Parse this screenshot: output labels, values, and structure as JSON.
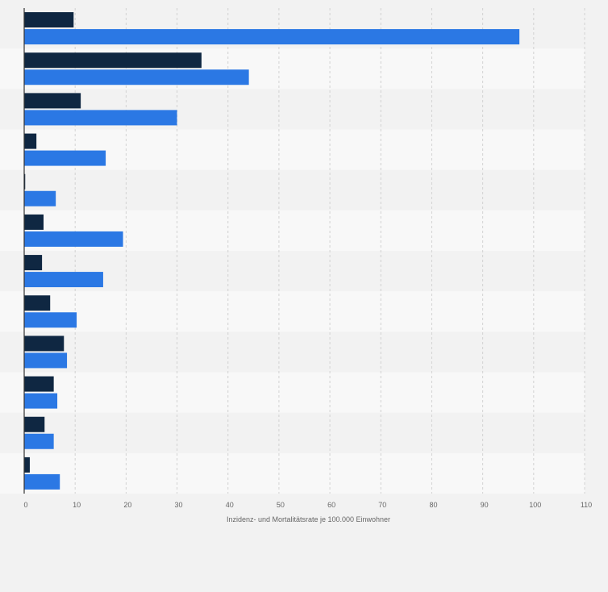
{
  "chart_data": {
    "type": "bar",
    "orientation": "horizontal",
    "categories": [
      "",
      "",
      "",
      "",
      "",
      "",
      "",
      "",
      "",
      "",
      "",
      ""
    ],
    "series": [
      {
        "values": [
          9.7,
          34.8,
          11.1,
          2.4,
          0.2,
          3.8,
          3.5,
          5.1,
          7.8,
          5.8,
          4.0,
          1.1
        ]
      },
      {
        "values": [
          97.2,
          44.1,
          30.0,
          16.0,
          6.2,
          19.4,
          15.5,
          10.3,
          8.4,
          6.5,
          5.8,
          7.0
        ]
      }
    ],
    "xlabel": "Inzidenz- und Mortalitätsrate je 100.000 Einwohner",
    "xlim": [
      0,
      110
    ],
    "xticks": [
      0,
      10,
      20,
      30,
      40,
      50,
      60,
      70,
      80,
      90,
      100,
      110
    ],
    "grid": true,
    "colors": {
      "series_1": "#0f2742",
      "series_2": "#2b78e4",
      "grid": "#d2d2d2",
      "band_light": "#f8f8f8",
      "band_dark": "#f2f2f2",
      "axis": "#333333",
      "tick_label": "#666666"
    }
  }
}
